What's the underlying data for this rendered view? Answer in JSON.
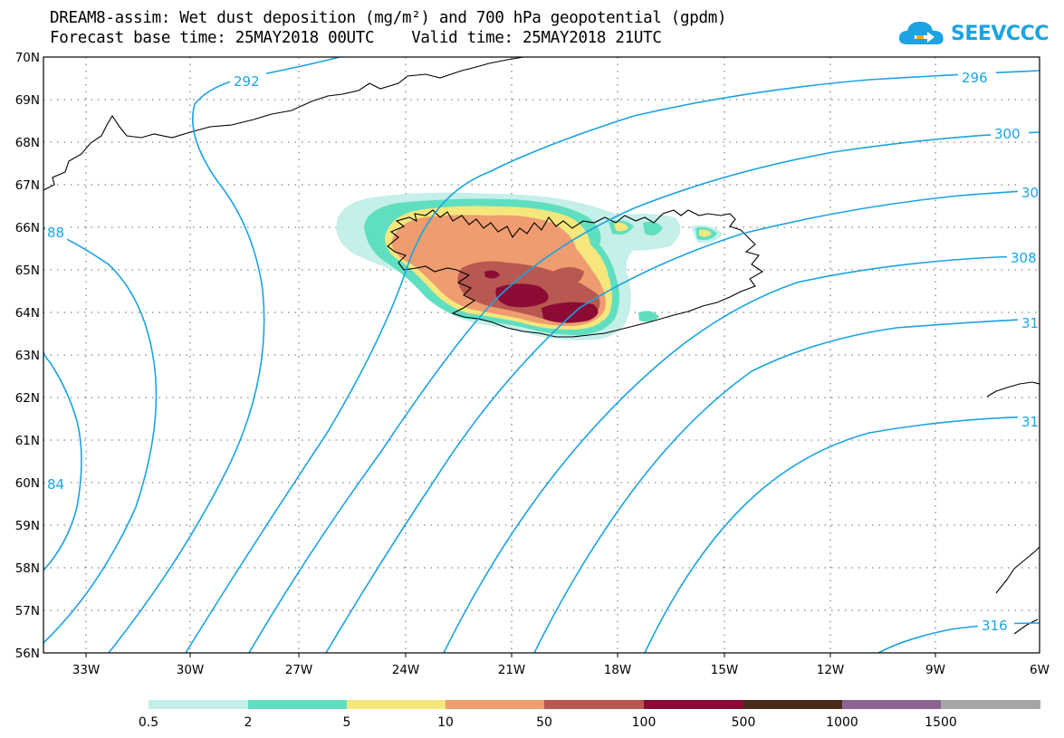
{
  "header": {
    "title_line1": "DREAM8-assim: Wet dust deposition (mg/m²) and 700 hPa geopotential (gpdm)",
    "title_line2": "Forecast base time: 25MAY2018 00UTC    Valid time: 25MAY2018 21UTC"
  },
  "logo": {
    "text": "SEEVCCC",
    "icon": "cloud-arrow-icon"
  },
  "map": {
    "lat_labels": [
      "70N",
      "69N",
      "68N",
      "67N",
      "66N",
      "65N",
      "64N",
      "63N",
      "62N",
      "61N",
      "60N",
      "59N",
      "58N",
      "57N",
      "56N"
    ],
    "lon_labels": [
      "33W",
      "30W",
      "27W",
      "24W",
      "21W",
      "18W",
      "15W",
      "12W",
      "9W",
      "6W"
    ],
    "contour_labels": [
      "292",
      "296",
      "300",
      "30",
      "308",
      "31",
      "31",
      "316",
      "88",
      "84"
    ],
    "contour_color": "#1ba3e3"
  },
  "colorbar": {
    "colors": [
      "#c5efe9",
      "#5fdfc0",
      "#f5e77c",
      "#ee9c70",
      "#b85850",
      "#8b0b35",
      "#4a2a18",
      "#8c6494",
      "#a6a6a6"
    ],
    "labels": [
      "0.5",
      "2",
      "5",
      "10",
      "50",
      "100",
      "500",
      "1000",
      "1500"
    ]
  }
}
